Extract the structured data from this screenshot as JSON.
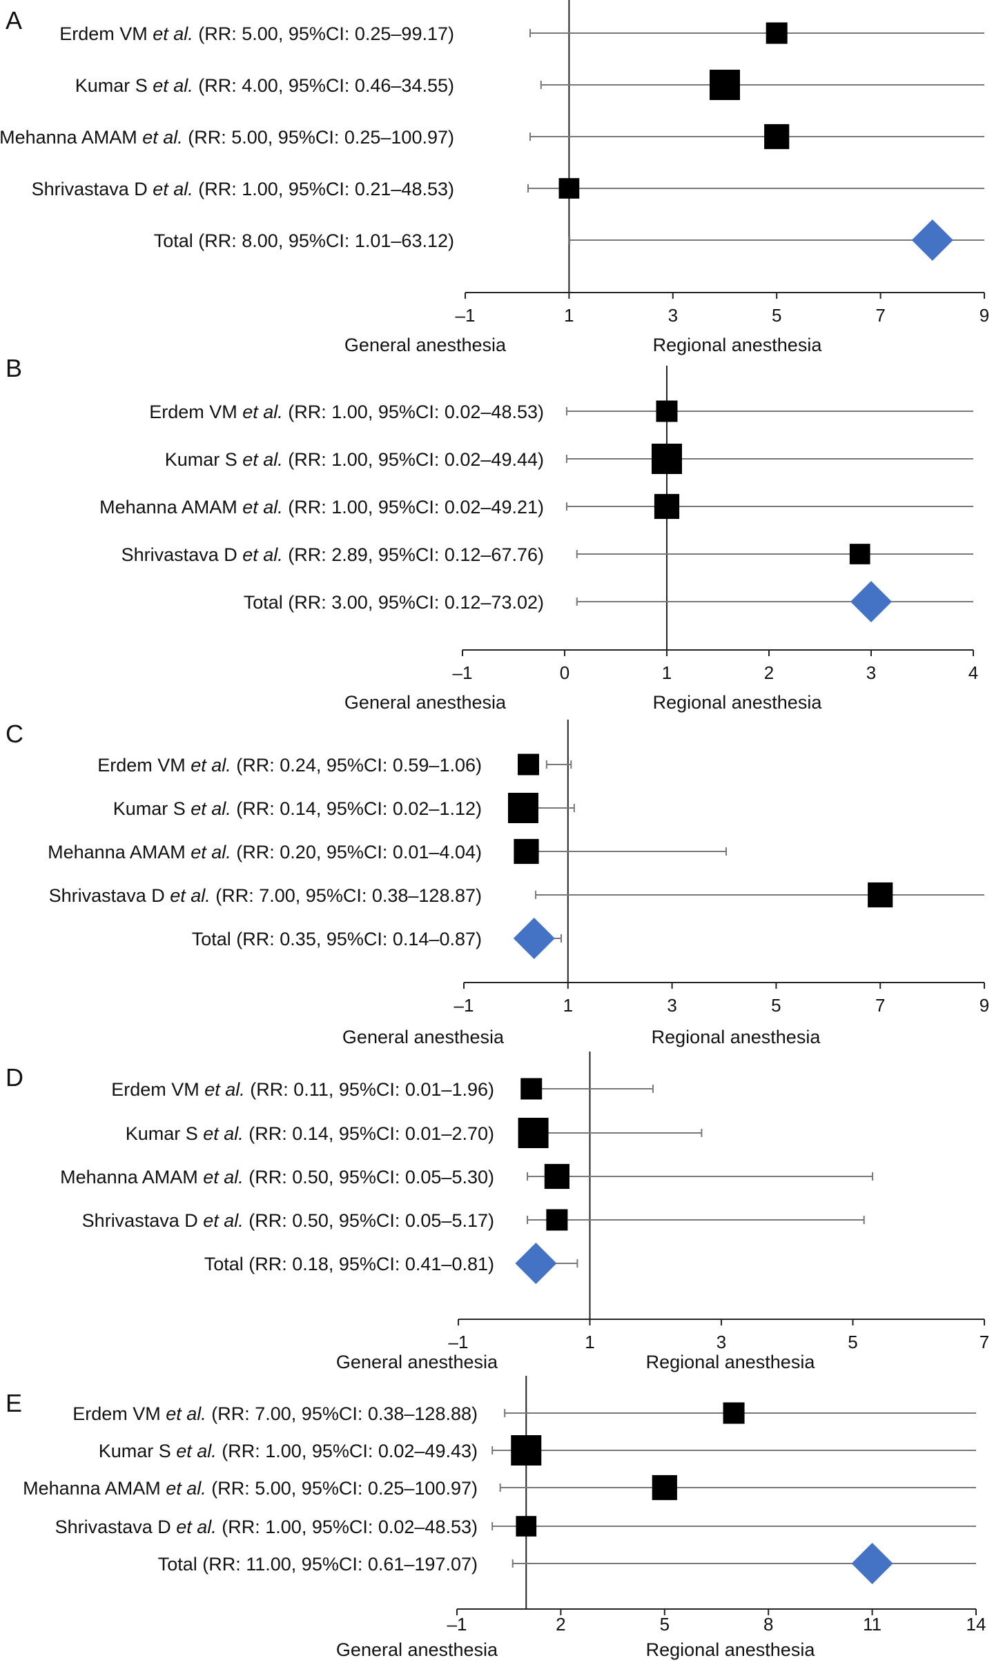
{
  "colors": {
    "square": "#000000",
    "diamond": "#4472c4",
    "axis": "#222222",
    "ci_line": "#777777"
  },
  "chart_data": [
    {
      "type": "forest",
      "panel_label": "A",
      "xlabel_left": "General anesthesia",
      "xlabel_right": "Regional anesthesia",
      "xlim": [
        -1,
        9
      ],
      "ticks": [
        -1,
        1,
        3,
        5,
        7,
        9
      ],
      "tick_labels": [
        "–1",
        "1",
        "3",
        "5",
        "7",
        "9"
      ],
      "null_line": 1,
      "rows": [
        {
          "author": "Erdem VM",
          "etal": "et al.",
          "stats": "(RR: 5.00, 95%CI: 0.25–99.17)",
          "rr": 5.0,
          "lo": 0.25,
          "hi": 99.17,
          "weight": 0.5,
          "kind": "study"
        },
        {
          "author": "Kumar S",
          "etal": "et al.",
          "stats": "(RR: 4.00, 95%CI: 0.46–34.55)",
          "rr": 4.0,
          "lo": 0.46,
          "hi": 34.55,
          "weight": 1.0,
          "kind": "study"
        },
        {
          "author": "Mehanna AMAM",
          "etal": "et al.",
          "stats": "(RR: 5.00, 95%CI: 0.25–100.97)",
          "rr": 5.0,
          "lo": 0.25,
          "hi": 100.97,
          "weight": 0.7,
          "kind": "study"
        },
        {
          "author": "Shrivastava D",
          "etal": "et al.",
          "stats": "(RR: 1.00, 95%CI: 0.21–48.53)",
          "rr": 1.0,
          "lo": 0.21,
          "hi": 48.53,
          "weight": 0.45,
          "kind": "study"
        },
        {
          "author": "Total",
          "etal": "",
          "stats": "(RR: 8.00, 95%CI: 1.01–63.12)",
          "rr": 8.0,
          "lo": 1.01,
          "hi": 63.12,
          "weight": 1.0,
          "kind": "total"
        }
      ]
    },
    {
      "type": "forest",
      "panel_label": "B",
      "xlabel_left": "General anesthesia",
      "xlabel_right": "Regional anesthesia",
      "xlim": [
        -1,
        4
      ],
      "ticks": [
        -1,
        0,
        1,
        2,
        3,
        4
      ],
      "tick_labels": [
        "–1",
        "0",
        "1",
        "2",
        "3",
        "4"
      ],
      "null_line": 1,
      "rows": [
        {
          "author": "Erdem VM",
          "etal": "et al.",
          "stats": "(RR: 1.00, 95%CI: 0.02–48.53)",
          "rr": 1.0,
          "lo": 0.02,
          "hi": 48.53,
          "weight": 0.5,
          "kind": "study"
        },
        {
          "author": "Kumar S",
          "etal": "et al.",
          "stats": "(RR: 1.00, 95%CI: 0.02–49.44)",
          "rr": 1.0,
          "lo": 0.02,
          "hi": 49.44,
          "weight": 1.0,
          "kind": "study"
        },
        {
          "author": "Mehanna AMAM",
          "etal": "et al.",
          "stats": "(RR: 1.00, 95%CI: 0.02–49.21)",
          "rr": 1.0,
          "lo": 0.02,
          "hi": 49.21,
          "weight": 0.7,
          "kind": "study"
        },
        {
          "author": "Shrivastava D",
          "etal": "et al.",
          "stats": "(RR: 2.89, 95%CI: 0.12–67.76)",
          "rr": 2.89,
          "lo": 0.12,
          "hi": 67.76,
          "weight": 0.45,
          "kind": "study"
        },
        {
          "author": "Total",
          "etal": "",
          "stats": "(RR: 3.00, 95%CI: 0.12–73.02)",
          "rr": 3.0,
          "lo": 0.12,
          "hi": 73.02,
          "weight": 1.0,
          "kind": "total"
        }
      ]
    },
    {
      "type": "forest",
      "panel_label": "C",
      "xlabel_left": "General anesthesia",
      "xlabel_right": "Regional anesthesia",
      "xlim": [
        -1,
        9
      ],
      "ticks": [
        -1,
        1,
        3,
        5,
        7,
        9
      ],
      "tick_labels": [
        "–1",
        "1",
        "3",
        "5",
        "7",
        "9"
      ],
      "null_line": 1,
      "rows": [
        {
          "author": "Erdem VM",
          "etal": "et al.",
          "stats": "(RR: 0.24, 95%CI: 0.59–1.06)",
          "rr": 0.24,
          "lo": 0.59,
          "hi": 1.06,
          "weight": 0.5,
          "kind": "study"
        },
        {
          "author": "Kumar S",
          "etal": "et al.",
          "stats": "(RR: 0.14, 95%CI: 0.02–1.12)",
          "rr": 0.14,
          "lo": 0.02,
          "hi": 1.12,
          "weight": 1.0,
          "kind": "study"
        },
        {
          "author": "Mehanna AMAM",
          "etal": "et al.",
          "stats": "(RR: 0.20, 95%CI: 0.01–4.04)",
          "rr": 0.2,
          "lo": 0.01,
          "hi": 4.04,
          "weight": 0.7,
          "kind": "study"
        },
        {
          "author": "Shrivastava D",
          "etal": "et al.",
          "stats": "(RR: 7.00, 95%CI: 0.38–128.87)",
          "rr": 7.0,
          "lo": 0.38,
          "hi": 128.87,
          "weight": 0.7,
          "kind": "study"
        },
        {
          "author": "Total",
          "etal": "",
          "stats": "(RR: 0.35, 95%CI: 0.14–0.87)",
          "rr": 0.35,
          "lo": 0.14,
          "hi": 0.87,
          "weight": 1.0,
          "kind": "total"
        }
      ]
    },
    {
      "type": "forest",
      "panel_label": "D",
      "xlabel_left": "General anesthesia",
      "xlabel_right": "Regional anesthesia",
      "xlim": [
        -1,
        7
      ],
      "ticks": [
        -1,
        1,
        3,
        5,
        7
      ],
      "tick_labels": [
        "–1",
        "1",
        "3",
        "5",
        "7"
      ],
      "null_line": 1,
      "rows": [
        {
          "author": "Erdem VM",
          "etal": "et al.",
          "stats": "(RR: 0.11, 95%CI: 0.01–1.96)",
          "rr": 0.11,
          "lo": 0.01,
          "hi": 1.96,
          "weight": 0.5,
          "kind": "study"
        },
        {
          "author": "Kumar S",
          "etal": "et al.",
          "stats": "(RR: 0.14, 95%CI: 0.01–2.70)",
          "rr": 0.14,
          "lo": 0.01,
          "hi": 2.7,
          "weight": 1.0,
          "kind": "study"
        },
        {
          "author": "Mehanna AMAM",
          "etal": "et al.",
          "stats": "(RR: 0.50, 95%CI: 0.05–5.30)",
          "rr": 0.5,
          "lo": 0.05,
          "hi": 5.3,
          "weight": 0.7,
          "kind": "study"
        },
        {
          "author": "Shrivastava D",
          "etal": "et al.",
          "stats": "(RR: 0.50, 95%CI: 0.05–5.17)",
          "rr": 0.5,
          "lo": 0.05,
          "hi": 5.17,
          "weight": 0.5,
          "kind": "study"
        },
        {
          "author": "Total",
          "etal": "",
          "stats": "(RR: 0.18, 95%CI: 0.41–0.81)",
          "rr": 0.18,
          "lo": 0.41,
          "hi": 0.81,
          "weight": 1.0,
          "kind": "total"
        }
      ]
    },
    {
      "type": "forest",
      "panel_label": "E",
      "xlabel_left": "General anesthesia",
      "xlabel_right": "Regional anesthesia",
      "xlim": [
        -1,
        14
      ],
      "ticks": [
        -1,
        2,
        5,
        8,
        11,
        14
      ],
      "tick_labels": [
        "–1",
        "2",
        "5",
        "8",
        "11",
        "14"
      ],
      "null_line": 1,
      "rows": [
        {
          "author": "Erdem VM",
          "etal": "et al.",
          "stats": "(RR: 7.00, 95%CI: 0.38–128.88)",
          "rr": 7.0,
          "lo": 0.38,
          "hi": 128.88,
          "weight": 0.5,
          "kind": "study"
        },
        {
          "author": "Kumar S",
          "etal": "et al.",
          "stats": "(RR: 1.00, 95%CI: 0.02–49.43)",
          "rr": 1.0,
          "lo": 0.02,
          "hi": 49.43,
          "weight": 1.0,
          "kind": "study"
        },
        {
          "author": "Mehanna AMAM",
          "etal": "et al.",
          "stats": "(RR: 5.00, 95%CI: 0.25–100.97)",
          "rr": 5.0,
          "lo": 0.25,
          "hi": 100.97,
          "weight": 0.7,
          "kind": "study"
        },
        {
          "author": "Shrivastava D",
          "etal": "et al.",
          "stats": "(RR: 1.00, 95%CI: 0.02–48.53)",
          "rr": 1.0,
          "lo": 0.02,
          "hi": 48.53,
          "weight": 0.45,
          "kind": "study"
        },
        {
          "author": "Total",
          "etal": "",
          "stats": "(RR: 11.00, 95%CI: 0.61–197.07)",
          "rr": 11.0,
          "lo": 0.61,
          "hi": 197.07,
          "weight": 1.0,
          "kind": "total"
        }
      ]
    }
  ]
}
